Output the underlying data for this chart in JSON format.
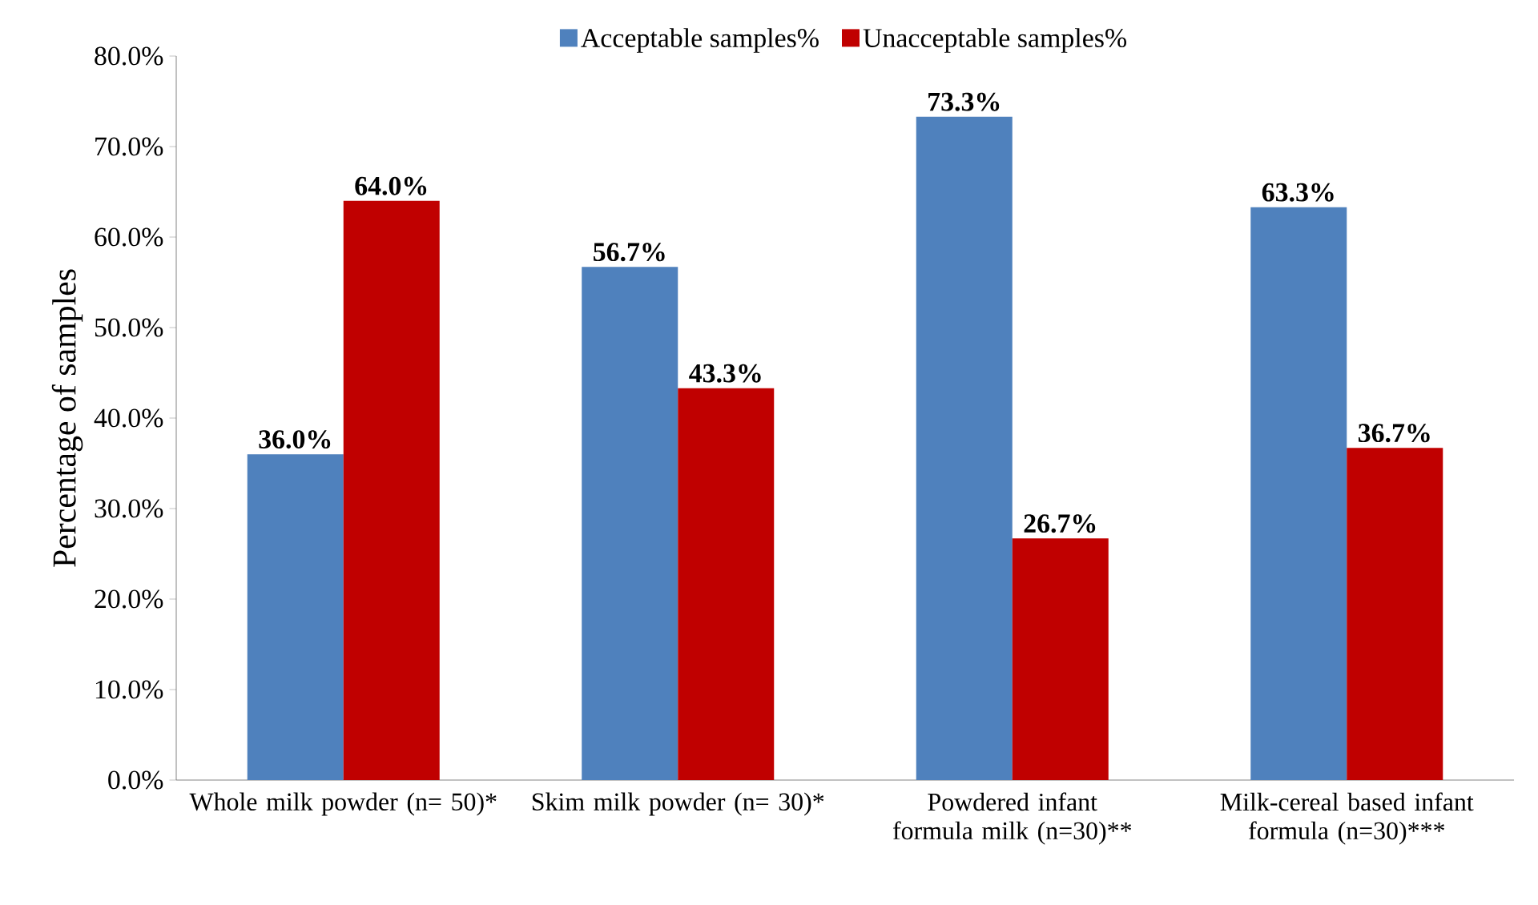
{
  "chart_data": {
    "type": "bar",
    "ylabel": "Percentage of samples",
    "categories": [
      "Whole milk powder (n= 50)*",
      "Skim milk powder (n= 30)*",
      "Powdered infant formula milk (n=30)**",
      "Milk-cereal based infant formula (n=30)***"
    ],
    "series": [
      {
        "name": "Acceptable samples%",
        "color": "#4f81bd",
        "values": [
          36.0,
          56.7,
          73.3,
          63.3
        ],
        "value_labels": [
          "36.0%",
          "56.7%",
          "73.3%",
          "63.3%"
        ]
      },
      {
        "name": "Unacceptable samples%",
        "color": "#c00000",
        "values": [
          64.0,
          43.3,
          26.7,
          36.7
        ],
        "value_labels": [
          "64.0%",
          "43.3%",
          "26.7%",
          "36.7%"
        ]
      }
    ],
    "ylim": [
      0,
      80
    ],
    "yticks": [
      {
        "value": 0,
        "label": "0.0%"
      },
      {
        "value": 10,
        "label": "10.0%"
      },
      {
        "value": 20,
        "label": "20.0%"
      },
      {
        "value": 30,
        "label": "30.0%"
      },
      {
        "value": 40,
        "label": "40.0%"
      },
      {
        "value": 50,
        "label": "50.0%"
      },
      {
        "value": 60,
        "label": "60.0%"
      },
      {
        "value": 70,
        "label": "70.0%"
      },
      {
        "value": 80,
        "label": "80.0%"
      }
    ],
    "grid": false,
    "legend": "top"
  }
}
